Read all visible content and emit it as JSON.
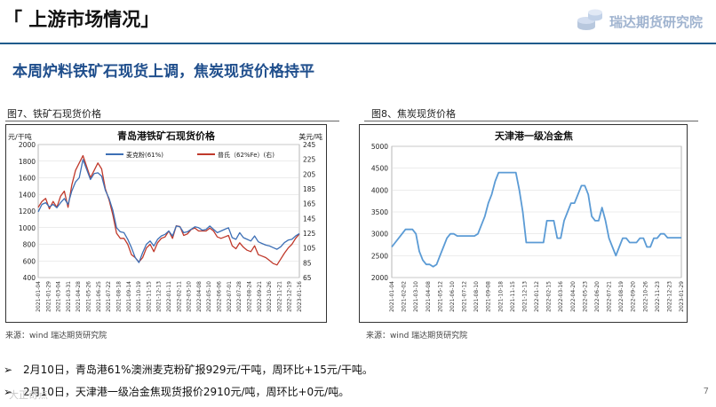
{
  "header": {
    "title": "「 上游市场情况」",
    "logo_text": "瑞达期货研究院"
  },
  "headline": "本周炉料铁矿石现货上调，焦炭现货价格持平",
  "figures": {
    "left_caption": "图7、铁矿石现货价格",
    "right_caption": "图8、焦炭现货价格",
    "left_source": "来源：wind   瑞达期货研究院",
    "right_source": "来源：wind   瑞达期货研究院"
  },
  "bullets": [
    {
      "mark": "➢",
      "text": "2月10日，青岛港61%澳洲麦克粉矿报929元/干吨，周环比+15元/干吨。"
    },
    {
      "mark": "➢",
      "text": "2月10日，天津港一级冶金焦现货报价2910元/吨，周环比+0元/吨。"
    }
  ],
  "page_number": "7",
  "watermark": "大正奇点",
  "colors": {
    "mac": "#3d6fb5",
    "pb": "#c0392b",
    "coke": "#5b9bd5",
    "brand": "#1f4e8c"
  },
  "chart_data": [
    {
      "type": "line",
      "title": "青岛港铁矿石现货价格",
      "ylabel_left": "元/干吨",
      "ylabel_right": "美元/吨",
      "ylim_left": [
        400,
        2000
      ],
      "yticks_left": [
        400,
        600,
        800,
        1000,
        1200,
        1400,
        1600,
        1800,
        2000
      ],
      "ylim_right": [
        65,
        245
      ],
      "yticks_right": [
        65,
        85,
        105,
        125,
        145,
        165,
        185,
        205,
        225,
        245
      ],
      "x_ticks": [
        "2021-01-04",
        "2021-01-29",
        "2021-03-04",
        "2021-03-31",
        "2021-04-28",
        "2021-05-26",
        "2021-06-25",
        "2021-07-22",
        "2021-08-18",
        "2021-09-14",
        "2021-10-19",
        "2021-11-15",
        "2021-12-13",
        "2022-01-11",
        "2022-02-11",
        "2022-03-10",
        "2022-04-08",
        "2022-05-10",
        "2022-06-06",
        "2022-07-01",
        "2022-07-28",
        "2022-08-24",
        "2022-09-21",
        "2022-10-26",
        "2022-11-21",
        "2022-12-19",
        "2023-01-16"
      ],
      "series": [
        {
          "name": "麦克粉(61%)",
          "axis": "left",
          "values": [
            1190,
            1280,
            1300,
            1250,
            1280,
            1240,
            1300,
            1350,
            1280,
            1440,
            1550,
            1600,
            1820,
            1700,
            1580,
            1650,
            1660,
            1620,
            1450,
            1350,
            1210,
            1000,
            950,
            940,
            860,
            760,
            640,
            580,
            700,
            800,
            840,
            780,
            860,
            900,
            920,
            960,
            900,
            1020,
            1010,
            940,
            950,
            980,
            1010,
            1000,
            970,
            980,
            1020,
            980,
            940,
            960,
            980,
            1000,
            880,
            860,
            940,
            880,
            860,
            840,
            900,
            830,
            810,
            790,
            780,
            760,
            740,
            770,
            820,
            850,
            860,
            900,
            929
          ]
        },
        {
          "name": "普氏（62%Fe）(右)",
          "axis": "right",
          "values": [
            160,
            168,
            172,
            158,
            168,
            160,
            175,
            182,
            160,
            190,
            210,
            220,
            230,
            215,
            200,
            210,
            220,
            212,
            185,
            170,
            150,
            125,
            118,
            118,
            110,
            96,
            92,
            86,
            92,
            105,
            110,
            100,
            112,
            118,
            120,
            128,
            118,
            135,
            134,
            122,
            124,
            130,
            132,
            128,
            128,
            128,
            132,
            128,
            120,
            118,
            120,
            122,
            108,
            104,
            112,
            106,
            102,
            100,
            108,
            96,
            94,
            92,
            88,
            84,
            82,
            90,
            98,
            105,
            110,
            118,
            124
          ]
        }
      ]
    },
    {
      "type": "line",
      "title": "天津港一级冶金焦",
      "ylim": [
        2000,
        5000
      ],
      "yticks": [
        2000,
        2500,
        3000,
        3500,
        4000,
        4500,
        5000
      ],
      "x_ticks": [
        "2021-01-04",
        "2021-02-02",
        "2021-03-10",
        "2021-04-08",
        "2021-05-12",
        "2021-06-10",
        "2021-07-12",
        "2021-08-10",
        "2021-09-08",
        "2021-10-18",
        "2021-11-15",
        "2021-12-13",
        "2022-01-12",
        "2022-02-15",
        "2022-03-16",
        "2022-04-20",
        "2022-05-23",
        "2022-06-20",
        "2022-07-21",
        "2022-08-19",
        "2022-09-20",
        "2022-10-26",
        "2022-11-23",
        "2022-12-23",
        "2023-01-29"
      ],
      "series": [
        {
          "name": "天津港一级冶金焦",
          "axis": "left",
          "values": [
            2700,
            2800,
            2900,
            3000,
            3100,
            3100,
            3100,
            3000,
            2600,
            2400,
            2300,
            2300,
            2250,
            2300,
            2500,
            2700,
            2900,
            3000,
            3000,
            2950,
            2950,
            2950,
            2950,
            2950,
            2950,
            3000,
            3200,
            3400,
            3700,
            3900,
            4200,
            4400,
            4400,
            4400,
            4400,
            4400,
            4400,
            4000,
            3500,
            2800,
            2800,
            2800,
            2800,
            2800,
            2800,
            3300,
            3300,
            3300,
            2900,
            2900,
            3300,
            3500,
            3700,
            3700,
            3900,
            4100,
            4100,
            3900,
            3400,
            3300,
            3300,
            3600,
            3300,
            2900,
            2700,
            2500,
            2700,
            2900,
            2900,
            2800,
            2800,
            2800,
            2900,
            2900,
            2700,
            2700,
            2900,
            2900,
            3000,
            3000,
            2910,
            2910,
            2910,
            2910,
            2910
          ]
        }
      ]
    }
  ]
}
